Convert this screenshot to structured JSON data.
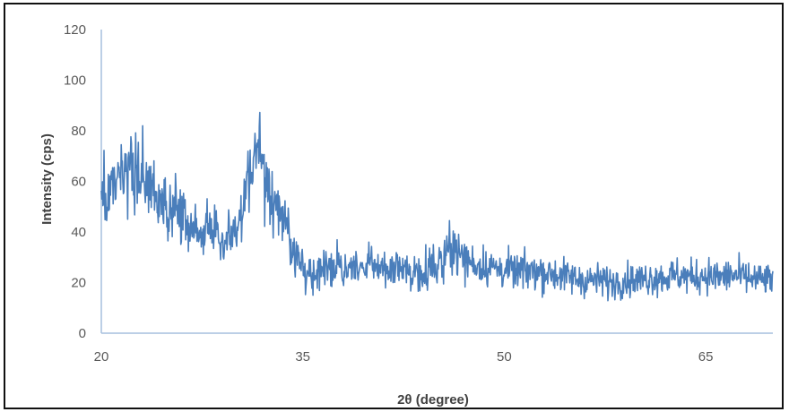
{
  "chart_data": {
    "type": "line",
    "title": "",
    "xlabel": "2θ (degree)",
    "ylabel": "Intensity (cps)",
    "xlim": [
      20,
      70
    ],
    "ylim": [
      0,
      120
    ],
    "x_ticks": [
      20,
      35,
      50,
      65
    ],
    "y_ticks": [
      0,
      20,
      40,
      60,
      80,
      100,
      120
    ],
    "grid": false,
    "legend": "none",
    "series": [
      {
        "color": "#4a7ebb",
        "x": [
          20,
          20.5,
          21,
          21.5,
          22,
          22.5,
          23,
          23.5,
          24,
          24.5,
          25,
          25.5,
          26,
          26.5,
          27,
          27.5,
          28,
          28.5,
          29,
          29.5,
          30,
          30.5,
          31,
          31.5,
          32,
          32.5,
          33,
          33.5,
          34,
          34.5,
          35,
          36,
          37,
          38,
          39,
          40,
          41,
          42,
          43,
          44,
          45,
          45.5,
          46,
          46.5,
          47,
          48,
          49,
          50,
          51,
          52,
          53,
          54,
          55,
          56,
          57,
          58,
          59,
          60,
          61,
          62,
          63,
          64,
          65,
          66,
          67,
          68,
          69,
          70
        ],
        "y": [
          52,
          55,
          57,
          60,
          63,
          65,
          62,
          58,
          54,
          50,
          47,
          52,
          44,
          40,
          42,
          38,
          44,
          40,
          36,
          38,
          42,
          50,
          62,
          72,
          68,
          56,
          52,
          48,
          38,
          30,
          26,
          24,
          25,
          26,
          25,
          27,
          26,
          25,
          24,
          25,
          27,
          30,
          36,
          32,
          29,
          27,
          26,
          25,
          24,
          25,
          24,
          23,
          22,
          21,
          21,
          20,
          21,
          21,
          22,
          22,
          23,
          22,
          23,
          22,
          23,
          22,
          21,
          21
        ]
      }
    ]
  }
}
